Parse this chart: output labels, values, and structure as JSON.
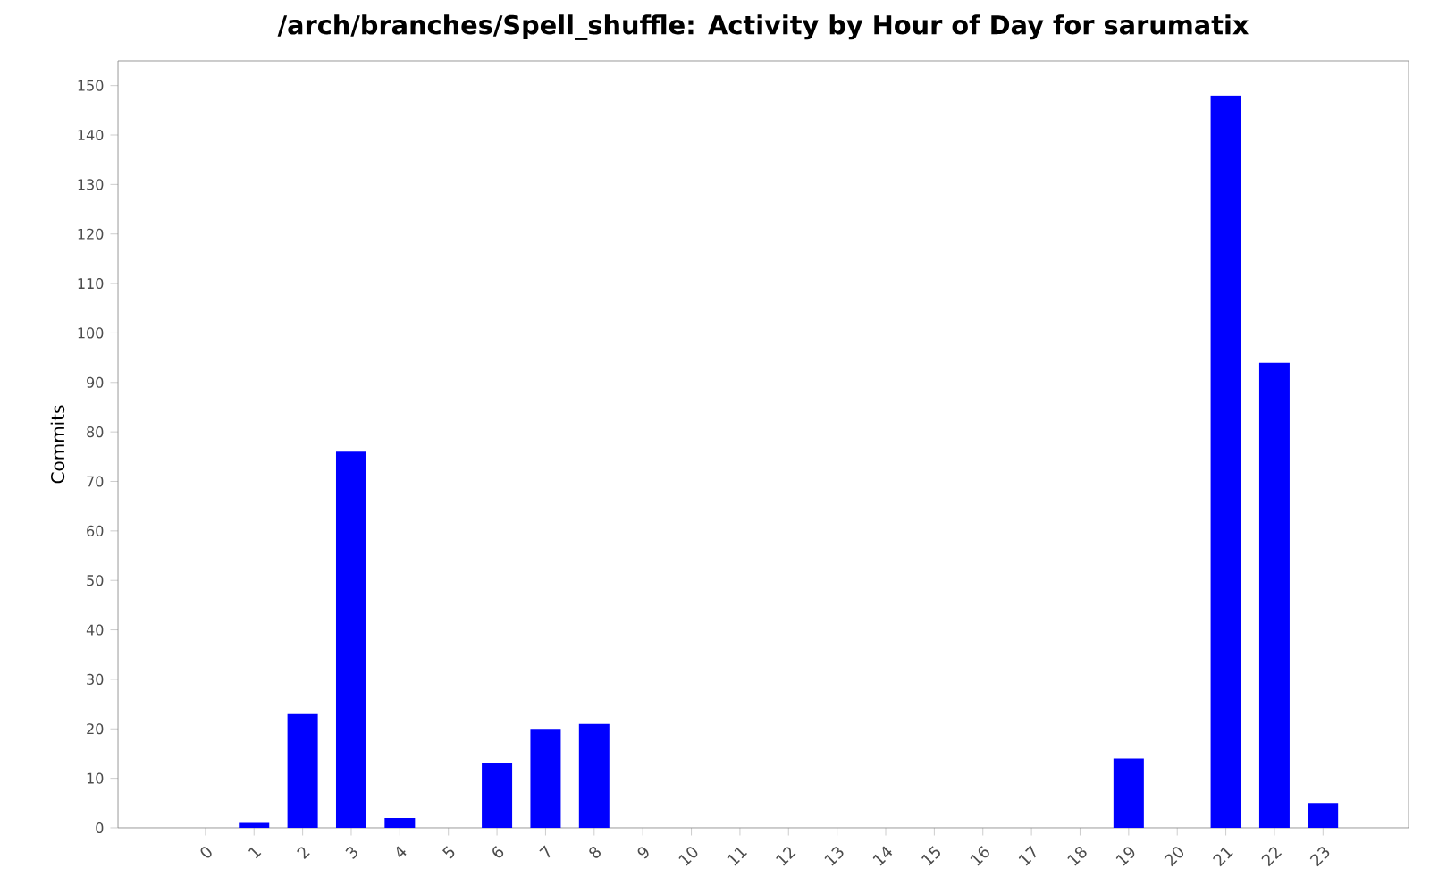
{
  "chart_data": {
    "type": "bar",
    "title": "/arch/branches/Spell_shuffle: Activity by Hour of Day for sarumatix",
    "ylabel": "Commits",
    "categories": [
      "0",
      "1",
      "2",
      "3",
      "4",
      "5",
      "6",
      "7",
      "8",
      "9",
      "10",
      "11",
      "12",
      "13",
      "14",
      "15",
      "16",
      "17",
      "18",
      "19",
      "20",
      "21",
      "22",
      "23"
    ],
    "values": [
      0,
      1,
      23,
      76,
      2,
      0,
      13,
      20,
      21,
      0,
      0,
      0,
      0,
      0,
      0,
      0,
      0,
      0,
      0,
      14,
      0,
      148,
      94,
      5
    ],
    "color": "#0000ff",
    "ylim": [
      0,
      155
    ],
    "yticks": [
      0,
      10,
      20,
      30,
      40,
      50,
      60,
      70,
      80,
      90,
      100,
      110,
      120,
      130,
      140,
      150
    ]
  }
}
